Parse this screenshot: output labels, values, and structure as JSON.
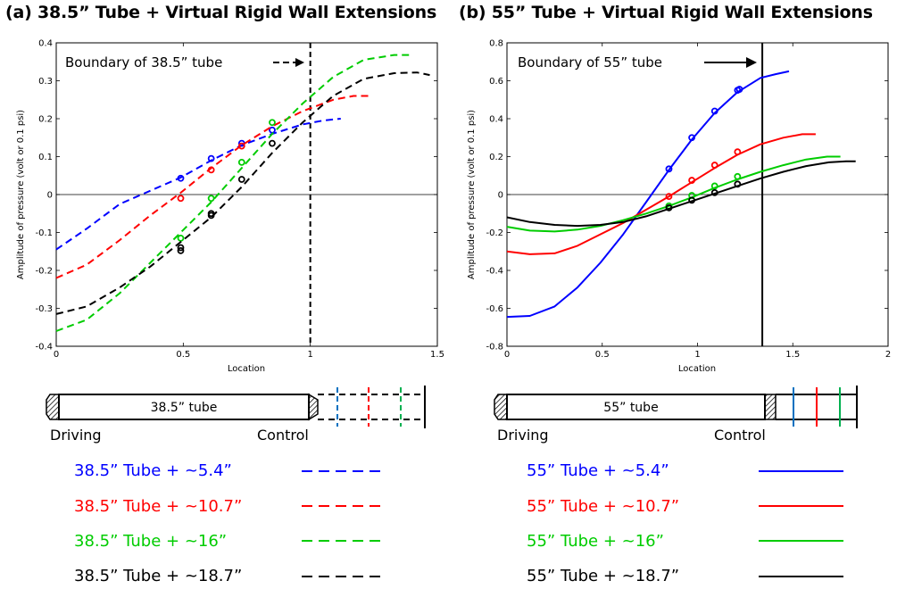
{
  "panels": {
    "a": {
      "title": "(a) 38.5” Tube + Virtual Rigid Wall Extensions",
      "boundary_label": "Boundary of 38.5” tube",
      "tube_label": "38.5” tube"
    },
    "b": {
      "title": "(b) 55” Tube + Virtual Rigid Wall Extensions",
      "boundary_label": "Boundary of 55” tube",
      "tube_label": "55” tube"
    }
  },
  "diagram_labels": {
    "driving": "Driving",
    "control": "Control"
  },
  "legend": {
    "a": [
      "38.5” Tube + ~5.4”",
      "38.5” Tube + ~10.7”",
      "38.5” Tube + ~16”",
      "38.5” Tube + ~18.7”"
    ],
    "b": [
      "55” Tube + ~5.4”",
      "55” Tube + ~10.7”",
      "55” Tube + ~16”",
      "55” Tube + ~18.7”"
    ]
  },
  "colors": {
    "blue": "#0000ff",
    "red": "#ff0000",
    "green": "#00cc00",
    "black": "#000000",
    "fig_blue": "#0070c0",
    "fig_green": "#00b050"
  },
  "chart_data": [
    {
      "type": "line",
      "title": "(a) 38.5” Tube + Virtual Rigid Wall Extensions",
      "xlabel": "Location",
      "ylabel": "Amplitude of pressure (volt or 0.1 psi)",
      "xlim": [
        0,
        1.5
      ],
      "ylim": [
        -0.4,
        0.4
      ],
      "xticks": [
        "0",
        "0.5",
        "1",
        "1.5"
      ],
      "yticks": [
        "-0.4",
        "-0.3",
        "-0.2",
        "-0.1",
        "0",
        "0.1",
        "0.2",
        "0.3",
        "0.4"
      ],
      "line_style": "dashed",
      "boundary_x": 1.0,
      "series": [
        {
          "name": "38.5” Tube + ~5.4”",
          "color": "#0000ff",
          "x": [
            0,
            0.12,
            0.25,
            0.37,
            0.49,
            0.61,
            0.73,
            0.85,
            0.97,
            1.05,
            1.12
          ],
          "y": [
            -0.145,
            -0.09,
            -0.025,
            0.01,
            0.045,
            0.09,
            0.13,
            0.16,
            0.185,
            0.195,
            0.2
          ],
          "markers": {
            "x": [
              0.49,
              0.61,
              0.73,
              0.85
            ],
            "y": [
              0.043,
              0.095,
              0.135,
              0.17
            ]
          }
        },
        {
          "name": "38.5” Tube + ~10.7”",
          "color": "#ff0000",
          "x": [
            0,
            0.12,
            0.25,
            0.37,
            0.49,
            0.61,
            0.73,
            0.85,
            0.97,
            1.09,
            1.17,
            1.24
          ],
          "y": [
            -0.22,
            -0.185,
            -0.12,
            -0.055,
            0.005,
            0.07,
            0.13,
            0.18,
            0.22,
            0.25,
            0.26,
            0.26
          ],
          "markers": {
            "x": [
              0.49,
              0.61,
              0.73
            ],
            "y": [
              -0.01,
              0.065,
              0.128
            ]
          }
        },
        {
          "name": "38.5” Tube + ~16”",
          "color": "#00cc00",
          "x": [
            0,
            0.12,
            0.25,
            0.37,
            0.49,
            0.61,
            0.73,
            0.85,
            0.97,
            1.09,
            1.21,
            1.33,
            1.39
          ],
          "y": [
            -0.36,
            -0.33,
            -0.26,
            -0.18,
            -0.1,
            -0.02,
            0.07,
            0.16,
            0.24,
            0.31,
            0.355,
            0.368,
            0.368
          ],
          "markers": {
            "x": [
              0.49,
              0.61,
              0.73,
              0.85
            ],
            "y": [
              -0.115,
              -0.01,
              0.085,
              0.19
            ]
          }
        },
        {
          "name": "38.5” Tube + ~18.7”",
          "color": "#000000",
          "x": [
            0,
            0.12,
            0.25,
            0.37,
            0.49,
            0.61,
            0.73,
            0.85,
            0.97,
            1.09,
            1.21,
            1.33,
            1.42,
            1.47
          ],
          "y": [
            -0.315,
            -0.295,
            -0.245,
            -0.19,
            -0.125,
            -0.06,
            0.02,
            0.11,
            0.19,
            0.26,
            0.305,
            0.32,
            0.322,
            0.315
          ],
          "markers": {
            "x": [
              0.49,
              0.49,
              0.61,
              0.61,
              0.73,
              0.85
            ],
            "y": [
              -0.14,
              -0.148,
              -0.05,
              -0.055,
              0.04,
              0.135
            ]
          }
        }
      ]
    },
    {
      "type": "line",
      "title": "(b) 55” Tube + Virtual Rigid Wall Extensions",
      "xlabel": "Location",
      "ylabel": "Amplitude of pressure (volt or 0.1 psi)",
      "xlim": [
        0,
        2
      ],
      "ylim": [
        -0.8,
        0.8
      ],
      "xticks": [
        "0",
        "0.5",
        "1",
        "1.5",
        "2"
      ],
      "yticks": [
        "-0.8",
        "-0.6",
        "-0.4",
        "-0.2",
        "0",
        "0.2",
        "0.4",
        "0.6",
        "0.8"
      ],
      "line_style": "solid",
      "boundary_x": 1.34,
      "series": [
        {
          "name": "55” Tube + ~5.4”",
          "color": "#0000ff",
          "x": [
            0,
            0.12,
            0.25,
            0.37,
            0.49,
            0.61,
            0.73,
            0.85,
            0.97,
            1.09,
            1.21,
            1.33,
            1.41,
            1.48
          ],
          "y": [
            -0.645,
            -0.64,
            -0.59,
            -0.49,
            -0.36,
            -0.21,
            -0.04,
            0.13,
            0.29,
            0.43,
            0.54,
            0.615,
            0.635,
            0.65
          ],
          "markers": {
            "x": [
              0.85,
              0.97,
              1.09,
              1.21,
              1.22
            ],
            "y": [
              0.135,
              0.3,
              0.44,
              0.55,
              0.555
            ]
          }
        },
        {
          "name": "55” Tube + ~10.7”",
          "color": "#ff0000",
          "x": [
            0,
            0.12,
            0.25,
            0.37,
            0.49,
            0.61,
            0.73,
            0.85,
            0.97,
            1.09,
            1.21,
            1.33,
            1.45,
            1.55,
            1.62
          ],
          "y": [
            -0.3,
            -0.315,
            -0.31,
            -0.27,
            -0.21,
            -0.15,
            -0.08,
            -0.01,
            0.065,
            0.14,
            0.21,
            0.265,
            0.3,
            0.318,
            0.318
          ],
          "markers": {
            "x": [
              0.85,
              0.97,
              1.09,
              1.21
            ],
            "y": [
              -0.01,
              0.075,
              0.155,
              0.225
            ]
          }
        },
        {
          "name": "55” Tube + ~16”",
          "color": "#00cc00",
          "x": [
            0,
            0.12,
            0.25,
            0.37,
            0.49,
            0.61,
            0.73,
            0.85,
            0.97,
            1.09,
            1.21,
            1.33,
            1.45,
            1.57,
            1.68,
            1.75
          ],
          "y": [
            -0.17,
            -0.19,
            -0.195,
            -0.185,
            -0.165,
            -0.135,
            -0.1,
            -0.06,
            -0.015,
            0.035,
            0.08,
            0.12,
            0.155,
            0.185,
            0.2,
            0.2
          ],
          "markers": {
            "x": [
              0.85,
              0.97,
              1.09,
              1.21
            ],
            "y": [
              -0.06,
              -0.005,
              0.045,
              0.095
            ]
          }
        },
        {
          "name": "55” Tube + ~18.7”",
          "color": "#000000",
          "x": [
            0,
            0.12,
            0.25,
            0.37,
            0.49,
            0.61,
            0.73,
            0.85,
            0.97,
            1.09,
            1.21,
            1.33,
            1.45,
            1.57,
            1.69,
            1.78,
            1.83
          ],
          "y": [
            -0.12,
            -0.145,
            -0.16,
            -0.165,
            -0.16,
            -0.145,
            -0.115,
            -0.075,
            -0.035,
            0.005,
            0.045,
            0.085,
            0.12,
            0.15,
            0.17,
            0.175,
            0.175
          ],
          "markers": {
            "x": [
              0.85,
              0.97,
              1.09,
              1.21
            ],
            "y": [
              -0.07,
              -0.03,
              0.01,
              0.055
            ]
          }
        }
      ]
    }
  ]
}
